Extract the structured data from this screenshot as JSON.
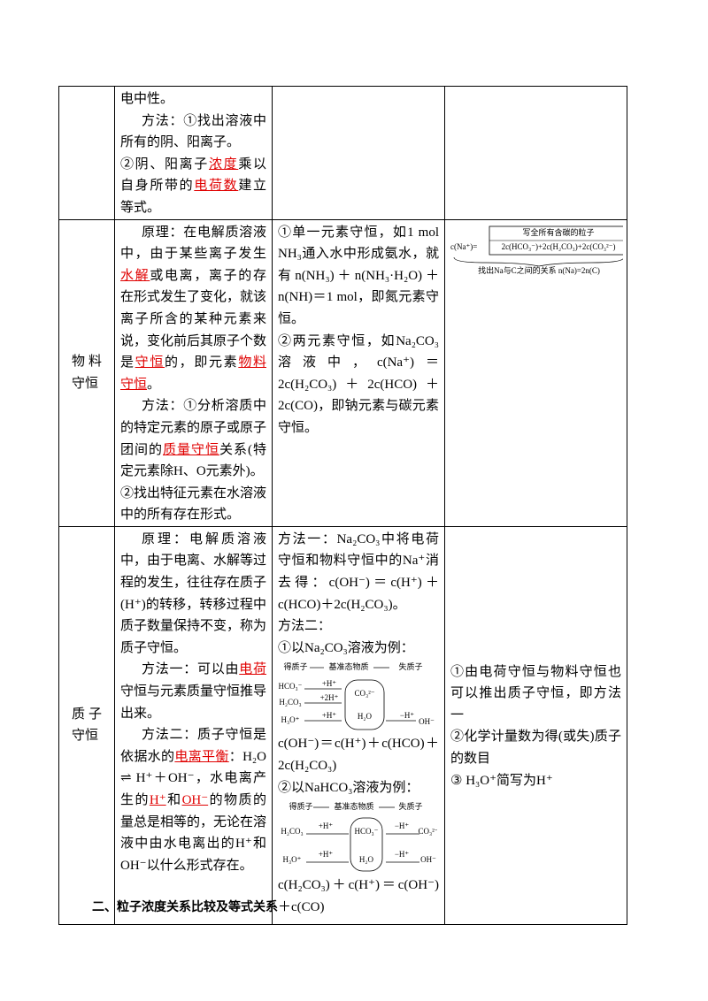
{
  "table": {
    "rows": [
      [
        [],
        [
          {
            "runs": [
              "电中性。"
            ]
          },
          {
            "indent": true,
            "runs": [
              "方法：①找出溶液中所有的阴、阳离子。"
            ]
          },
          {
            "runs": [
              "②阴、阳离子",
              {
                "t": "浓度",
                "hl": true
              },
              "乘以自身所带的",
              {
                "t": "电荷数",
                "hl": true
              },
              "建立等式。"
            ]
          }
        ],
        [],
        []
      ],
      [
        [
          {
            "runs": [
              "物料守恒"
            ]
          }
        ],
        [
          {
            "indent": true,
            "runs": [
              "原理：在电解质溶液中，由于某些离子发生",
              {
                "t": "水解",
                "hl": true
              },
              "或电离，离子的存在形式发生了变化，就该离子所含的某种元素来说，变化前后其原子个数是",
              {
                "t": "守恒",
                "hl": true
              },
              "的，即元素",
              {
                "t": "物料守恒",
                "hl": true
              },
              "。"
            ]
          },
          {
            "indent": true,
            "runs": [
              "方法：①分析溶质中的特定元素的原子或原子团间的",
              {
                "t": "质量守恒",
                "hl": true
              },
              "关系(特定元素除H、O元素外)。"
            ]
          },
          {
            "runs": [
              "②找出特征元素在水溶液中的所有存在形式。"
            ]
          }
        ],
        [
          {
            "runs": [
              "①单一元素守恒，如1 mol NH₃通入水中形成氨水，就有 n(NH₃) ＋ n(NH₃·H₂O) ＋ n(NH)＝1 mol，即氮元素守恒。"
            ]
          },
          {
            "runs": [
              "②两元素守恒，如Na₂CO₃溶液中，c(Na⁺)＝2c(H₂CO₃)＋2c(HCO)＋2c(CO)，即钠元素与碳元素守恒。"
            ]
          }
        ],
        [
          {
            "labels": [
              "c(Na⁺)=",
              "写全所有含碳的粒子",
              "2c(HCO₃⁻)+2c(H₂CO₃)+2c(CO₃²⁻)",
              "找出Na与C之间的关系 n(Na)=2n(C)"
            ]
          }
        ]
      ],
      [
        [
          {
            "runs": [
              "质子守恒"
            ]
          }
        ],
        [
          {
            "indent": true,
            "runs": [
              "原理：电解质溶液中，由于电离、水解等过程的发生，往往存在质子(H⁺)的转移，转移过程中质子数量保持不变，称为质子守恒。"
            ]
          },
          {
            "indent": true,
            "runs": [
              "方法一：可以由",
              {
                "t": "电荷",
                "hl": true
              },
              "守恒与元素质量守恒推导出来。"
            ]
          },
          {
            "indent": true,
            "runs": [
              "方法二：质子守恒是依据水的",
              {
                "t": "电离平衡",
                "hl": true
              },
              "：H₂O ⇌ H⁺＋OH⁻，水电离产生的",
              {
                "t": "H⁺",
                "hl": true
              },
              "和",
              {
                "t": "OH⁻",
                "hl": true
              },
              "的物质的量总是相等的，无论在溶液中由水电离出的H⁺和OH⁻以什么形式存在。"
            ]
          }
        ],
        [
          {
            "runs": [
              "方法一：Na₂CO₃中将电荷守恒和物料守恒中的Na⁺消去得：c(OH⁻)＝c(H⁺)＋c(HCO)＋2c(H₂CO₃)。"
            ]
          },
          {
            "runs": [
              "方法二："
            ]
          },
          {
            "runs": [
              "①以Na₂CO₃溶液为例："
            ]
          },
          {
            "labels": [
              "得质子",
              "基准态物质",
              "失质子",
              "HCO₃⁻",
              "+H⁺",
              "+2H⁺",
              "H₂CO₃",
              "CO₃²⁻",
              "H₃O⁺",
              "+H⁺",
              "H₂O",
              "−H⁺",
              "OH⁻"
            ]
          },
          {
            "runs": [
              "c(OH⁻)＝c(H⁺)＋c(HCO)＋2c(H₂CO₃)"
            ]
          },
          {
            "runs": [
              "②以NaHCO₃溶液为例："
            ]
          },
          {
            "labels": [
              "得质子",
              "基准态物质",
              "失质子",
              "H₂CO₃",
              "+H⁺",
              "HCO₃⁻",
              "−H⁺",
              "CO₃²⁻",
              "H₃O⁺",
              "+H⁺",
              "H₂O",
              "−H⁺",
              "OH⁻"
            ]
          },
          {
            "runs": [
              "c(H₂CO₃)＋c(H⁺)＝c(OH⁻)＋c(CO)"
            ]
          }
        ],
        [
          {
            "runs": [
              "①由电荷守恒与物料守恒也可以推出质子守恒，即方法一"
            ]
          },
          {
            "runs": [
              "②化学计量数为得(或失)质子的数目"
            ]
          },
          {
            "runs": [
              "③ H₃O⁺简写为H⁺"
            ]
          }
        ]
      ]
    ]
  },
  "heading": "二、粒子浓度关系比较及等式关系"
}
